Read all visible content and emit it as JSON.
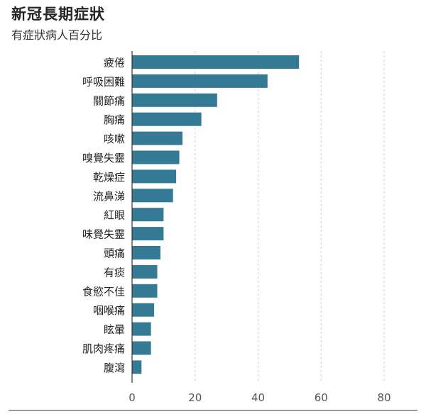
{
  "chart_data": {
    "type": "bar",
    "orientation": "horizontal",
    "title": "新冠長期症狀",
    "subtitle": "有症狀病人百分比",
    "xlabel": "",
    "ylabel": "",
    "xlim": [
      0,
      80
    ],
    "xticks": [
      0,
      20,
      40,
      60,
      80
    ],
    "grid": true,
    "bar_color": "#357a94",
    "categories": [
      "疲倦",
      "呼吸困難",
      "關節痛",
      "胸痛",
      "咳嗽",
      "嗅覺失靈",
      "乾燥症",
      "流鼻涕",
      "紅眼",
      "味覺失靈",
      "頭痛",
      "有痰",
      "食慾不佳",
      "咽喉痛",
      "眩暈",
      "肌肉疼痛",
      "腹瀉"
    ],
    "values": [
      53,
      43,
      27,
      22,
      16,
      15,
      14,
      13,
      10,
      10,
      9,
      8,
      8,
      7,
      6,
      6,
      3
    ]
  }
}
